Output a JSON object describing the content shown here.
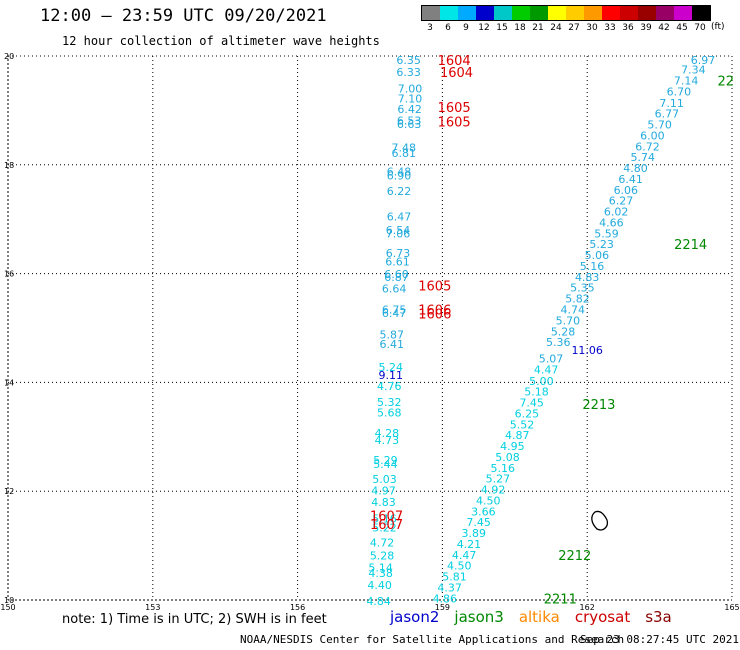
{
  "header": {
    "title": "12:00 — 23:59 UTC 09/20/2021",
    "subtitle": "12 hour collection of altimeter wave heights"
  },
  "scale": {
    "labels": [
      "3",
      "6",
      "9",
      "12",
      "15",
      "18",
      "21",
      "24",
      "27",
      "30",
      "33",
      "36",
      "39",
      "42",
      "45",
      "70"
    ],
    "unit": "(ft)",
    "colors": [
      "#808080",
      "#00e5e5",
      "#00aaff",
      "#0000cc",
      "#00c8c8",
      "#00cc00",
      "#009900",
      "#ffff00",
      "#ffcc00",
      "#ff9900",
      "#ff0000",
      "#cc0000",
      "#990000",
      "#990066",
      "#cc00cc",
      "#000000"
    ]
  },
  "footer": {
    "note": "note: 1) Time is in UTC; 2) SWH is in feet",
    "credit": "NOAA/NESDIS Center for Satellite Applications and Research",
    "timestamp": "Sep 23 08:27:45 UTC 2021"
  },
  "legend": [
    {
      "name": "jason2",
      "color": "#0000cc"
    },
    {
      "name": "jason3",
      "color": "#008800"
    },
    {
      "name": "altika",
      "color": "#ff8800"
    },
    {
      "name": "cryosat",
      "color": "#cc0000"
    },
    {
      "name": "s3a",
      "color": "#880000"
    }
  ],
  "chart_data": {
    "type": "scatter",
    "xlim": [
      150,
      165
    ],
    "ylim": [
      10,
      20
    ],
    "x_ticks": [
      150,
      153,
      156,
      159,
      162,
      165
    ],
    "y_ticks": [
      10,
      12,
      14,
      16,
      18,
      20
    ],
    "grid": true,
    "swh_points": [
      {
        "x": 158.3,
        "y": 19.93,
        "v": "6.35",
        "c": "#22aadd"
      },
      {
        "x": 158.3,
        "y": 19.71,
        "v": "6.33",
        "c": "#22aadd"
      },
      {
        "x": 158.33,
        "y": 19.4,
        "v": "7.00",
        "c": "#22aadd"
      },
      {
        "x": 158.33,
        "y": 19.22,
        "v": "7.10",
        "c": "#22aadd"
      },
      {
        "x": 158.32,
        "y": 19.03,
        "v": "6.42",
        "c": "#22aadd"
      },
      {
        "x": 158.31,
        "y": 18.81,
        "v": "6.53",
        "c": "#22aadd"
      },
      {
        "x": 158.31,
        "y": 18.75,
        "v": "6.63",
        "c": "#22aadd"
      },
      {
        "x": 158.2,
        "y": 18.32,
        "v": "7.48",
        "c": "#22aadd"
      },
      {
        "x": 158.2,
        "y": 18.22,
        "v": "6.81",
        "c": "#22aadd"
      },
      {
        "x": 158.1,
        "y": 17.88,
        "v": "6.48",
        "c": "#22aadd"
      },
      {
        "x": 158.1,
        "y": 17.8,
        "v": "6.90",
        "c": "#22aadd"
      },
      {
        "x": 158.1,
        "y": 17.52,
        "v": "6.22",
        "c": "#22aadd"
      },
      {
        "x": 158.1,
        "y": 17.05,
        "v": "6.47",
        "c": "#22aadd"
      },
      {
        "x": 158.08,
        "y": 16.8,
        "v": "6.54",
        "c": "#22aadd"
      },
      {
        "x": 158.08,
        "y": 16.74,
        "v": "7.06",
        "c": "#22aadd"
      },
      {
        "x": 158.08,
        "y": 16.38,
        "v": "6.73",
        "c": "#22aadd"
      },
      {
        "x": 158.07,
        "y": 16.22,
        "v": "6.61",
        "c": "#22aadd"
      },
      {
        "x": 158.05,
        "y": 15.99,
        "v": "6.60",
        "c": "#22aadd"
      },
      {
        "x": 158.05,
        "y": 15.94,
        "v": "6.87",
        "c": "#22aadd"
      },
      {
        "x": 158.0,
        "y": 15.73,
        "v": "6.64",
        "c": "#22aadd"
      },
      {
        "x": 158.0,
        "y": 15.34,
        "v": "6.75",
        "c": "#22aadd"
      },
      {
        "x": 158.0,
        "y": 15.28,
        "v": "6.47",
        "c": "#22aadd"
      },
      {
        "x": 157.95,
        "y": 14.88,
        "v": "5.87",
        "c": "#22aadd"
      },
      {
        "x": 157.95,
        "y": 14.71,
        "v": "6.41",
        "c": "#22aadd"
      },
      {
        "x": 157.93,
        "y": 14.28,
        "v": "5.24",
        "c": "#00d0e0"
      },
      {
        "x": 157.93,
        "y": 14.14,
        "v": "9.11",
        "c": "#0000cc"
      },
      {
        "x": 157.9,
        "y": 13.93,
        "v": "4.76",
        "c": "#00d0e0"
      },
      {
        "x": 157.9,
        "y": 13.64,
        "v": "5.32",
        "c": "#00d0e0"
      },
      {
        "x": 157.9,
        "y": 13.45,
        "v": "5.68",
        "c": "#00d0e0"
      },
      {
        "x": 157.85,
        "y": 13.07,
        "v": "4.28",
        "c": "#00d0e0"
      },
      {
        "x": 157.85,
        "y": 12.94,
        "v": "4.73",
        "c": "#00d0e0"
      },
      {
        "x": 157.82,
        "y": 12.57,
        "v": "5.29",
        "c": "#00d0e0"
      },
      {
        "x": 157.82,
        "y": 12.5,
        "v": "5.44",
        "c": "#00d0e0"
      },
      {
        "x": 157.8,
        "y": 12.22,
        "v": "5.03",
        "c": "#00d0e0"
      },
      {
        "x": 157.78,
        "y": 12.01,
        "v": "4.97",
        "c": "#00d0e0"
      },
      {
        "x": 157.78,
        "y": 11.8,
        "v": "4.83",
        "c": "#00d0e0"
      },
      {
        "x": 157.8,
        "y": 11.5,
        "v": "5.16",
        "c": "#00d0e0"
      },
      {
        "x": 157.8,
        "y": 11.33,
        "v": "5.22",
        "c": "#00d0e0"
      },
      {
        "x": 157.75,
        "y": 11.06,
        "v": "4.72",
        "c": "#00d0e0"
      },
      {
        "x": 157.75,
        "y": 10.82,
        "v": "5.28",
        "c": "#00d0e0"
      },
      {
        "x": 157.72,
        "y": 10.6,
        "v": "5.14",
        "c": "#00d0e0"
      },
      {
        "x": 157.72,
        "y": 10.5,
        "v": "4.38",
        "c": "#00d0e0"
      },
      {
        "x": 157.7,
        "y": 10.28,
        "v": "4.40",
        "c": "#00d0e0"
      },
      {
        "x": 157.68,
        "y": 9.98,
        "v": "4.84",
        "c": "#00d0e0"
      },
      {
        "x": 164.4,
        "y": 19.93,
        "v": "6.97",
        "c": "#22aadd"
      },
      {
        "x": 164.2,
        "y": 19.75,
        "v": "7.34",
        "c": "#22aadd"
      },
      {
        "x": 164.05,
        "y": 19.55,
        "v": "7.14",
        "c": "#22aadd"
      },
      {
        "x": 163.9,
        "y": 19.35,
        "v": "6.70",
        "c": "#22aadd"
      },
      {
        "x": 163.75,
        "y": 19.14,
        "v": "7.11",
        "c": "#22aadd"
      },
      {
        "x": 163.65,
        "y": 18.94,
        "v": "6.77",
        "c": "#22aadd"
      },
      {
        "x": 163.5,
        "y": 18.74,
        "v": "5.70",
        "c": "#22aadd"
      },
      {
        "x": 163.35,
        "y": 18.54,
        "v": "6.00",
        "c": "#22aadd"
      },
      {
        "x": 163.25,
        "y": 18.34,
        "v": "6.72",
        "c": "#22aadd"
      },
      {
        "x": 163.15,
        "y": 18.14,
        "v": "5.74",
        "c": "#22aadd"
      },
      {
        "x": 163.0,
        "y": 17.94,
        "v": "4.80",
        "c": "#22aadd"
      },
      {
        "x": 162.9,
        "y": 17.74,
        "v": "6.41",
        "c": "#22aadd"
      },
      {
        "x": 162.8,
        "y": 17.54,
        "v": "6.06",
        "c": "#22aadd"
      },
      {
        "x": 162.7,
        "y": 17.34,
        "v": "6.27",
        "c": "#22aadd"
      },
      {
        "x": 162.6,
        "y": 17.14,
        "v": "6.02",
        "c": "#22aadd"
      },
      {
        "x": 162.5,
        "y": 16.94,
        "v": "4.66",
        "c": "#22aadd"
      },
      {
        "x": 162.4,
        "y": 16.74,
        "v": "5.59",
        "c": "#22aadd"
      },
      {
        "x": 162.3,
        "y": 16.54,
        "v": "5.23",
        "c": "#22aadd"
      },
      {
        "x": 162.2,
        "y": 16.34,
        "v": "5.06",
        "c": "#22aadd"
      },
      {
        "x": 162.1,
        "y": 16.14,
        "v": "5.16",
        "c": "#22aadd"
      },
      {
        "x": 162.0,
        "y": 15.94,
        "v": "4.83",
        "c": "#22aadd"
      },
      {
        "x": 161.9,
        "y": 15.74,
        "v": "5.35",
        "c": "#22aadd"
      },
      {
        "x": 161.8,
        "y": 15.54,
        "v": "5.82",
        "c": "#22aadd"
      },
      {
        "x": 161.7,
        "y": 15.34,
        "v": "4.74",
        "c": "#22aadd"
      },
      {
        "x": 161.6,
        "y": 15.14,
        "v": "5.70",
        "c": "#22aadd"
      },
      {
        "x": 161.5,
        "y": 14.94,
        "v": "5.28",
        "c": "#22aadd"
      },
      {
        "x": 161.4,
        "y": 14.74,
        "v": "5.36",
        "c": "#22aadd"
      },
      {
        "x": 162.0,
        "y": 14.6,
        "v": "11.06",
        "c": "#0000cc"
      },
      {
        "x": 161.25,
        "y": 14.44,
        "v": "5.07",
        "c": "#22aadd"
      },
      {
        "x": 161.15,
        "y": 14.24,
        "v": "4.47",
        "c": "#00d0e0"
      },
      {
        "x": 161.05,
        "y": 14.03,
        "v": "5.00",
        "c": "#00d0e0"
      },
      {
        "x": 160.95,
        "y": 13.83,
        "v": "5.18",
        "c": "#00d0e0"
      },
      {
        "x": 160.85,
        "y": 13.63,
        "v": "7.45",
        "c": "#00d0e0"
      },
      {
        "x": 160.75,
        "y": 13.43,
        "v": "6.25",
        "c": "#00d0e0"
      },
      {
        "x": 160.65,
        "y": 13.23,
        "v": "5.52",
        "c": "#00d0e0"
      },
      {
        "x": 160.55,
        "y": 13.03,
        "v": "4.87",
        "c": "#00d0e0"
      },
      {
        "x": 160.45,
        "y": 12.83,
        "v": "4.95",
        "c": "#00d0e0"
      },
      {
        "x": 160.35,
        "y": 12.63,
        "v": "5.08",
        "c": "#00d0e0"
      },
      {
        "x": 160.25,
        "y": 12.43,
        "v": "5.16",
        "c": "#00d0e0"
      },
      {
        "x": 160.15,
        "y": 12.23,
        "v": "5.27",
        "c": "#00d0e0"
      },
      {
        "x": 160.05,
        "y": 12.03,
        "v": "4.92",
        "c": "#00d0e0"
      },
      {
        "x": 159.95,
        "y": 11.83,
        "v": "4.50",
        "c": "#00d0e0"
      },
      {
        "x": 159.85,
        "y": 11.63,
        "v": "3.66",
        "c": "#00d0e0"
      },
      {
        "x": 159.75,
        "y": 11.43,
        "v": "7.45",
        "c": "#00d0e0"
      },
      {
        "x": 159.65,
        "y": 11.23,
        "v": "3.89",
        "c": "#00d0e0"
      },
      {
        "x": 159.55,
        "y": 11.03,
        "v": "4.21",
        "c": "#00d0e0"
      },
      {
        "x": 159.45,
        "y": 10.83,
        "v": "4.47",
        "c": "#00d0e0"
      },
      {
        "x": 159.35,
        "y": 10.63,
        "v": "4.50",
        "c": "#00d0e0"
      },
      {
        "x": 159.25,
        "y": 10.43,
        "v": "5.81",
        "c": "#00d0e0"
      },
      {
        "x": 159.15,
        "y": 10.23,
        "v": "4.37",
        "c": "#00d0e0"
      },
      {
        "x": 159.05,
        "y": 10.03,
        "v": "4.86",
        "c": "#00d0e0"
      }
    ],
    "time_labels": [
      {
        "x": 158.9,
        "y": 19.93,
        "v": "1604",
        "c": "#dd0000"
      },
      {
        "x": 158.95,
        "y": 19.71,
        "v": "1604",
        "c": "#dd0000"
      },
      {
        "x": 158.9,
        "y": 19.06,
        "v": "1605",
        "c": "#dd0000"
      },
      {
        "x": 158.9,
        "y": 18.8,
        "v": "1605",
        "c": "#dd0000"
      },
      {
        "x": 158.5,
        "y": 15.78,
        "v": "1605",
        "c": "#dd0000"
      },
      {
        "x": 158.5,
        "y": 15.34,
        "v": "1606",
        "c": "#dd0000"
      },
      {
        "x": 158.5,
        "y": 15.27,
        "v": "1606",
        "c": "#dd0000"
      },
      {
        "x": 157.5,
        "y": 11.55,
        "v": "1607",
        "c": "#dd0000"
      },
      {
        "x": 157.5,
        "y": 11.4,
        "v": "1607",
        "c": "#dd0000"
      },
      {
        "x": 164.7,
        "y": 19.55,
        "v": "22",
        "c": "#008800"
      },
      {
        "x": 163.8,
        "y": 16.54,
        "v": "2214",
        "c": "#008800"
      },
      {
        "x": 161.9,
        "y": 13.6,
        "v": "2213",
        "c": "#008800"
      },
      {
        "x": 161.4,
        "y": 10.83,
        "v": "2212",
        "c": "#008800"
      },
      {
        "x": 161.1,
        "y": 10.03,
        "v": "2211",
        "c": "#008800"
      }
    ]
  }
}
